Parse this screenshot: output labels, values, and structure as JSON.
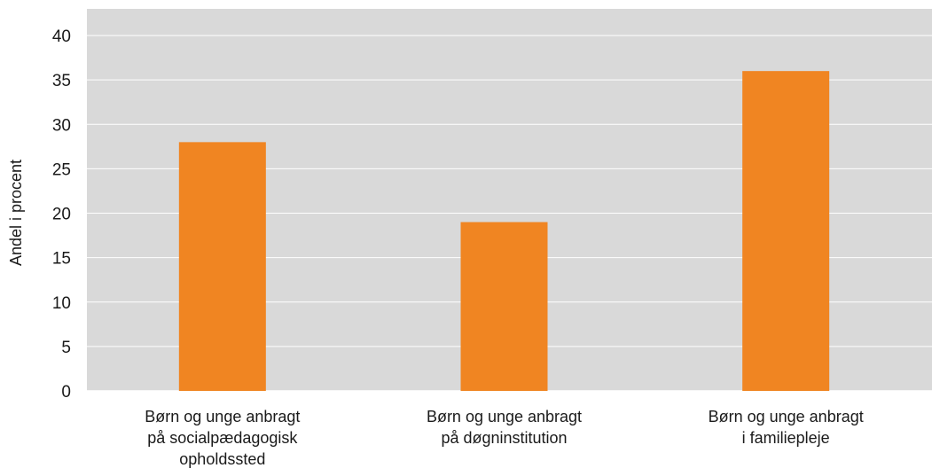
{
  "chart_data": {
    "type": "bar",
    "categories": [
      [
        "Børn og unge anbragt",
        "på socialpædagogisk",
        "opholdssted"
      ],
      [
        "Børn og unge anbragt",
        "på døgninstitution"
      ],
      [
        "Børn og unge anbragt",
        "i familiepleje"
      ]
    ],
    "values": [
      28,
      19,
      36
    ],
    "ylabel": "Andel i procent",
    "ylim": [
      0,
      43
    ],
    "yticks": [
      0,
      5,
      10,
      15,
      20,
      25,
      30,
      35,
      40
    ],
    "grid": true,
    "colors": {
      "bar": "#f08522",
      "plot_background": "#d9d9d9",
      "gridline": "#ffffff"
    }
  }
}
